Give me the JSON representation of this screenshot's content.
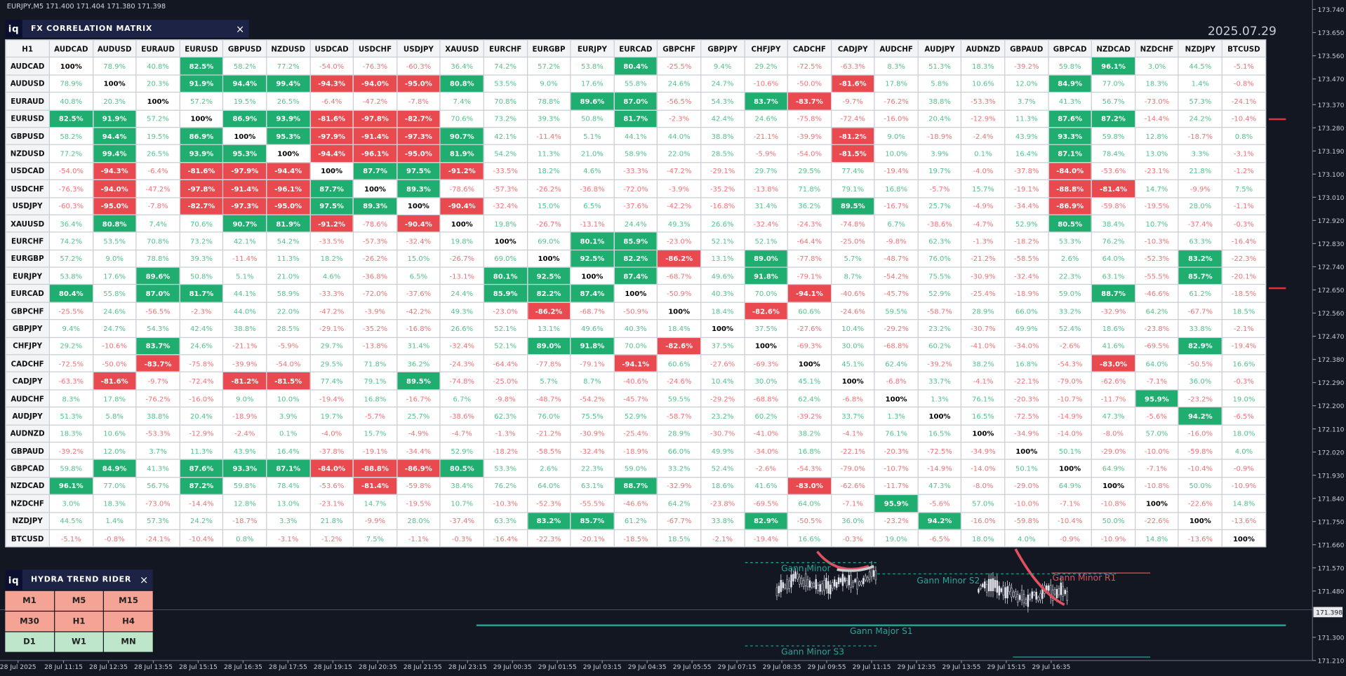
{
  "header": {
    "symbol_info": "EURJPY,M5  171.400 171.404 171.380 171.398",
    "date": "2025.07.29"
  },
  "matrix": {
    "logo": "iq",
    "title": "FX CORRELATION MATRIX",
    "close": "×",
    "corner": "H1",
    "columns": [
      "AUDCAD",
      "AUDUSD",
      "EURAUD",
      "EURUSD",
      "GBPUSD",
      "NZDUSD",
      "USDCAD",
      "USDCHF",
      "USDJPY",
      "XAUUSD",
      "EURCHF",
      "EURGBP",
      "EURJPY",
      "EURCAD",
      "GBPCHF",
      "GBPJPY",
      "CHFJPY",
      "CADCHF",
      "CADJPY",
      "AUDCHF",
      "AUDJPY",
      "AUDNZD",
      "GBPAUD",
      "GBPCAD",
      "NZDCAD",
      "NZDCHF",
      "NZDJPY",
      "BTCUSD"
    ],
    "rows": [
      {
        "label": "AUDCAD",
        "cells": [
          "100%",
          "78.9%",
          "40.8%",
          "82.5%",
          "58.2%",
          "77.2%",
          "-54.0%",
          "-76.3%",
          "-60.3%",
          "36.4%",
          "74.2%",
          "57.2%",
          "53.8%",
          "80.4%",
          "-25.5%",
          "9.4%",
          "29.2%",
          "-72.5%",
          "-63.3%",
          "8.3%",
          "51.3%",
          "18.3%",
          "-39.2%",
          "59.8%",
          "96.1%",
          "3.0%",
          "44.5%",
          "-5.1%"
        ]
      },
      {
        "label": "AUDUSD",
        "cells": [
          "78.9%",
          "100%",
          "20.3%",
          "91.9%",
          "94.4%",
          "99.4%",
          "-94.3%",
          "-94.0%",
          "-95.0%",
          "80.8%",
          "53.5%",
          "9.0%",
          "17.6%",
          "55.8%",
          "24.6%",
          "24.7%",
          "-10.6%",
          "-50.0%",
          "-81.6%",
          "17.8%",
          "5.8%",
          "10.6%",
          "12.0%",
          "84.9%",
          "77.0%",
          "18.3%",
          "1.4%",
          "-0.8%"
        ]
      },
      {
        "label": "EURAUD",
        "cells": [
          "40.8%",
          "20.3%",
          "100%",
          "57.2%",
          "19.5%",
          "26.5%",
          "-6.4%",
          "-47.2%",
          "-7.8%",
          "7.4%",
          "70.8%",
          "78.8%",
          "89.6%",
          "87.0%",
          "-56.5%",
          "54.3%",
          "83.7%",
          "-83.7%",
          "-9.7%",
          "-76.2%",
          "38.8%",
          "-53.3%",
          "3.7%",
          "41.3%",
          "56.7%",
          "-73.0%",
          "57.3%",
          "-24.1%"
        ]
      },
      {
        "label": "EURUSD",
        "cells": [
          "82.5%",
          "91.9%",
          "57.2%",
          "100%",
          "86.9%",
          "93.9%",
          "-81.6%",
          "-97.8%",
          "-82.7%",
          "70.6%",
          "73.2%",
          "39.3%",
          "50.8%",
          "81.7%",
          "-2.3%",
          "42.4%",
          "24.6%",
          "-75.8%",
          "-72.4%",
          "-16.0%",
          "20.4%",
          "-12.9%",
          "11.3%",
          "87.6%",
          "87.2%",
          "-14.4%",
          "24.2%",
          "-10.4%"
        ]
      },
      {
        "label": "GBPUSD",
        "cells": [
          "58.2%",
          "94.4%",
          "19.5%",
          "86.9%",
          "100%",
          "95.3%",
          "-97.9%",
          "-91.4%",
          "-97.3%",
          "90.7%",
          "42.1%",
          "-11.4%",
          "5.1%",
          "44.1%",
          "44.0%",
          "38.8%",
          "-21.1%",
          "-39.9%",
          "-81.2%",
          "9.0%",
          "-18.9%",
          "-2.4%",
          "43.9%",
          "93.3%",
          "59.8%",
          "12.8%",
          "-18.7%",
          "0.8%"
        ]
      },
      {
        "label": "NZDUSD",
        "cells": [
          "77.2%",
          "99.4%",
          "26.5%",
          "93.9%",
          "95.3%",
          "100%",
          "-94.4%",
          "-96.1%",
          "-95.0%",
          "81.9%",
          "54.2%",
          "11.3%",
          "21.0%",
          "58.9%",
          "22.0%",
          "28.5%",
          "-5.9%",
          "-54.0%",
          "-81.5%",
          "10.0%",
          "3.9%",
          "0.1%",
          "16.4%",
          "87.1%",
          "78.4%",
          "13.0%",
          "3.3%",
          "-3.1%"
        ]
      },
      {
        "label": "USDCAD",
        "cells": [
          "-54.0%",
          "-94.3%",
          "-6.4%",
          "-81.6%",
          "-97.9%",
          "-94.4%",
          "100%",
          "87.7%",
          "97.5%",
          "-91.2%",
          "-33.5%",
          "18.2%",
          "4.6%",
          "-33.3%",
          "-47.2%",
          "-29.1%",
          "29.7%",
          "29.5%",
          "77.4%",
          "-19.4%",
          "19.7%",
          "-4.0%",
          "-37.8%",
          "-84.0%",
          "-53.6%",
          "-23.1%",
          "21.8%",
          "-1.2%"
        ]
      },
      {
        "label": "USDCHF",
        "cells": [
          "-76.3%",
          "-94.0%",
          "-47.2%",
          "-97.8%",
          "-91.4%",
          "-96.1%",
          "87.7%",
          "100%",
          "89.3%",
          "-78.6%",
          "-57.3%",
          "-26.2%",
          "-36.8%",
          "-72.0%",
          "-3.9%",
          "-35.2%",
          "-13.8%",
          "71.8%",
          "79.1%",
          "16.8%",
          "-5.7%",
          "15.7%",
          "-19.1%",
          "-88.8%",
          "-81.4%",
          "14.7%",
          "-9.9%",
          "7.5%"
        ]
      },
      {
        "label": "USDJPY",
        "cells": [
          "-60.3%",
          "-95.0%",
          "-7.8%",
          "-82.7%",
          "-97.3%",
          "-95.0%",
          "97.5%",
          "89.3%",
          "100%",
          "-90.4%",
          "-32.4%",
          "15.0%",
          "6.5%",
          "-37.6%",
          "-42.2%",
          "-16.8%",
          "31.4%",
          "36.2%",
          "89.5%",
          "-16.7%",
          "25.7%",
          "-4.9%",
          "-34.4%",
          "-86.9%",
          "-59.8%",
          "-19.5%",
          "28.0%",
          "-1.1%"
        ]
      },
      {
        "label": "XAUUSD",
        "cells": [
          "36.4%",
          "80.8%",
          "7.4%",
          "70.6%",
          "90.7%",
          "81.9%",
          "-91.2%",
          "-78.6%",
          "-90.4%",
          "100%",
          "19.8%",
          "-26.7%",
          "-13.1%",
          "24.4%",
          "49.3%",
          "26.6%",
          "-32.4%",
          "-24.3%",
          "-74.8%",
          "6.7%",
          "-38.6%",
          "-4.7%",
          "52.9%",
          "80.5%",
          "38.4%",
          "10.7%",
          "-37.4%",
          "-0.3%"
        ]
      },
      {
        "label": "EURCHF",
        "cells": [
          "74.2%",
          "53.5%",
          "70.8%",
          "73.2%",
          "42.1%",
          "54.2%",
          "-33.5%",
          "-57.3%",
          "-32.4%",
          "19.8%",
          "100%",
          "69.0%",
          "80.1%",
          "85.9%",
          "-23.0%",
          "52.1%",
          "52.1%",
          "-64.4%",
          "-25.0%",
          "-9.8%",
          "62.3%",
          "-1.3%",
          "-18.2%",
          "53.3%",
          "76.2%",
          "-10.3%",
          "63.3%",
          "-16.4%"
        ]
      },
      {
        "label": "EURGBP",
        "cells": [
          "57.2%",
          "9.0%",
          "78.8%",
          "39.3%",
          "-11.4%",
          "11.3%",
          "18.2%",
          "-26.2%",
          "15.0%",
          "-26.7%",
          "69.0%",
          "100%",
          "92.5%",
          "82.2%",
          "-86.2%",
          "13.1%",
          "89.0%",
          "-77.8%",
          "5.7%",
          "-48.7%",
          "76.0%",
          "-21.2%",
          "-58.5%",
          "2.6%",
          "64.0%",
          "-52.3%",
          "83.2%",
          "-22.3%"
        ]
      },
      {
        "label": "EURJPY",
        "cells": [
          "53.8%",
          "17.6%",
          "89.6%",
          "50.8%",
          "5.1%",
          "21.0%",
          "4.6%",
          "-36.8%",
          "6.5%",
          "-13.1%",
          "80.1%",
          "92.5%",
          "100%",
          "87.4%",
          "-68.7%",
          "49.6%",
          "91.8%",
          "-79.1%",
          "8.7%",
          "-54.2%",
          "75.5%",
          "-30.9%",
          "-32.4%",
          "22.3%",
          "63.1%",
          "-55.5%",
          "85.7%",
          "-20.1%"
        ]
      },
      {
        "label": "EURCAD",
        "cells": [
          "80.4%",
          "55.8%",
          "87.0%",
          "81.7%",
          "44.1%",
          "58.9%",
          "-33.3%",
          "-72.0%",
          "-37.6%",
          "24.4%",
          "85.9%",
          "82.2%",
          "87.4%",
          "100%",
          "-50.9%",
          "40.3%",
          "70.0%",
          "-94.1%",
          "-40.6%",
          "-45.7%",
          "52.9%",
          "-25.4%",
          "-18.9%",
          "59.0%",
          "88.7%",
          "-46.6%",
          "61.2%",
          "-18.5%"
        ]
      },
      {
        "label": "GBPCHF",
        "cells": [
          "-25.5%",
          "24.6%",
          "-56.5%",
          "-2.3%",
          "44.0%",
          "22.0%",
          "-47.2%",
          "-3.9%",
          "-42.2%",
          "49.3%",
          "-23.0%",
          "-86.2%",
          "-68.7%",
          "-50.9%",
          "100%",
          "18.4%",
          "-82.6%",
          "60.6%",
          "-24.6%",
          "59.5%",
          "-58.7%",
          "28.9%",
          "66.0%",
          "33.2%",
          "-32.9%",
          "64.2%",
          "-67.7%",
          "18.5%"
        ]
      },
      {
        "label": "GBPJPY",
        "cells": [
          "9.4%",
          "24.7%",
          "54.3%",
          "42.4%",
          "38.8%",
          "28.5%",
          "-29.1%",
          "-35.2%",
          "-16.8%",
          "26.6%",
          "52.1%",
          "13.1%",
          "49.6%",
          "40.3%",
          "18.4%",
          "100%",
          "37.5%",
          "-27.6%",
          "10.4%",
          "-29.2%",
          "23.2%",
          "-30.7%",
          "49.9%",
          "52.4%",
          "18.6%",
          "-23.8%",
          "33.8%",
          "-2.1%"
        ]
      },
      {
        "label": "CHFJPY",
        "cells": [
          "29.2%",
          "-10.6%",
          "83.7%",
          "24.6%",
          "-21.1%",
          "-5.9%",
          "29.7%",
          "-13.8%",
          "31.4%",
          "-32.4%",
          "52.1%",
          "89.0%",
          "91.8%",
          "70.0%",
          "-82.6%",
          "37.5%",
          "100%",
          "-69.3%",
          "30.0%",
          "-68.8%",
          "60.2%",
          "-41.0%",
          "-34.0%",
          "-2.6%",
          "41.6%",
          "-69.5%",
          "82.9%",
          "-19.4%"
        ]
      },
      {
        "label": "CADCHF",
        "cells": [
          "-72.5%",
          "-50.0%",
          "-83.7%",
          "-75.8%",
          "-39.9%",
          "-54.0%",
          "29.5%",
          "71.8%",
          "36.2%",
          "-24.3%",
          "-64.4%",
          "-77.8%",
          "-79.1%",
          "-94.1%",
          "60.6%",
          "-27.6%",
          "-69.3%",
          "100%",
          "45.1%",
          "62.4%",
          "-39.2%",
          "38.2%",
          "16.8%",
          "-54.3%",
          "-83.0%",
          "64.0%",
          "-50.5%",
          "16.6%"
        ]
      },
      {
        "label": "CADJPY",
        "cells": [
          "-63.3%",
          "-81.6%",
          "-9.7%",
          "-72.4%",
          "-81.2%",
          "-81.5%",
          "77.4%",
          "79.1%",
          "89.5%",
          "-74.8%",
          "-25.0%",
          "5.7%",
          "8.7%",
          "-40.6%",
          "-24.6%",
          "10.4%",
          "30.0%",
          "45.1%",
          "100%",
          "-6.8%",
          "33.7%",
          "-4.1%",
          "-22.1%",
          "-79.0%",
          "-62.6%",
          "-7.1%",
          "36.0%",
          "-0.3%"
        ]
      },
      {
        "label": "AUDCHF",
        "cells": [
          "8.3%",
          "17.8%",
          "-76.2%",
          "-16.0%",
          "9.0%",
          "10.0%",
          "-19.4%",
          "16.8%",
          "-16.7%",
          "6.7%",
          "-9.8%",
          "-48.7%",
          "-54.2%",
          "-45.7%",
          "59.5%",
          "-29.2%",
          "-68.8%",
          "62.4%",
          "-6.8%",
          "100%",
          "1.3%",
          "76.1%",
          "-20.3%",
          "-10.7%",
          "-11.7%",
          "95.9%",
          "-23.2%",
          "19.0%"
        ]
      },
      {
        "label": "AUDJPY",
        "cells": [
          "51.3%",
          "5.8%",
          "38.8%",
          "20.4%",
          "-18.9%",
          "3.9%",
          "19.7%",
          "-5.7%",
          "25.7%",
          "-38.6%",
          "62.3%",
          "76.0%",
          "75.5%",
          "52.9%",
          "-58.7%",
          "23.2%",
          "60.2%",
          "-39.2%",
          "33.7%",
          "1.3%",
          "100%",
          "16.5%",
          "-72.5%",
          "-14.9%",
          "47.3%",
          "-5.6%",
          "94.2%",
          "-6.5%"
        ]
      },
      {
        "label": "AUDNZD",
        "cells": [
          "18.3%",
          "10.6%",
          "-53.3%",
          "-12.9%",
          "-2.4%",
          "0.1%",
          "-4.0%",
          "15.7%",
          "-4.9%",
          "-4.7%",
          "-1.3%",
          "-21.2%",
          "-30.9%",
          "-25.4%",
          "28.9%",
          "-30.7%",
          "-41.0%",
          "38.2%",
          "-4.1%",
          "76.1%",
          "16.5%",
          "100%",
          "-34.9%",
          "-14.0%",
          "-8.0%",
          "57.0%",
          "-16.0%",
          "18.0%"
        ]
      },
      {
        "label": "GBPAUD",
        "cells": [
          "-39.2%",
          "12.0%",
          "3.7%",
          "11.3%",
          "43.9%",
          "16.4%",
          "-37.8%",
          "-19.1%",
          "-34.4%",
          "52.9%",
          "-18.2%",
          "-58.5%",
          "-32.4%",
          "-18.9%",
          "66.0%",
          "49.9%",
          "-34.0%",
          "16.8%",
          "-22.1%",
          "-20.3%",
          "-72.5%",
          "-34.9%",
          "100%",
          "50.1%",
          "-29.0%",
          "-10.0%",
          "-59.8%",
          "4.0%"
        ]
      },
      {
        "label": "GBPCAD",
        "cells": [
          "59.8%",
          "84.9%",
          "41.3%",
          "87.6%",
          "93.3%",
          "87.1%",
          "-84.0%",
          "-88.8%",
          "-86.9%",
          "80.5%",
          "53.3%",
          "2.6%",
          "22.3%",
          "59.0%",
          "33.2%",
          "52.4%",
          "-2.6%",
          "-54.3%",
          "-79.0%",
          "-10.7%",
          "-14.9%",
          "-14.0%",
          "50.1%",
          "100%",
          "64.9%",
          "-7.1%",
          "-10.4%",
          "-0.9%"
        ]
      },
      {
        "label": "NZDCAD",
        "cells": [
          "96.1%",
          "77.0%",
          "56.7%",
          "87.2%",
          "59.8%",
          "78.4%",
          "-53.6%",
          "-81.4%",
          "-59.8%",
          "38.4%",
          "76.2%",
          "64.0%",
          "63.1%",
          "88.7%",
          "-32.9%",
          "18.6%",
          "41.6%",
          "-83.0%",
          "-62.6%",
          "-11.7%",
          "47.3%",
          "-8.0%",
          "-29.0%",
          "64.9%",
          "100%",
          "-10.8%",
          "50.0%",
          "-10.9%"
        ]
      },
      {
        "label": "NZDCHF",
        "cells": [
          "3.0%",
          "18.3%",
          "-73.0%",
          "-14.4%",
          "12.8%",
          "13.0%",
          "-23.1%",
          "14.7%",
          "-19.5%",
          "10.7%",
          "-10.3%",
          "-52.3%",
          "-55.5%",
          "-46.6%",
          "64.2%",
          "-23.8%",
          "-69.5%",
          "64.0%",
          "-7.1%",
          "95.9%",
          "-5.6%",
          "57.0%",
          "-10.0%",
          "-7.1%",
          "-10.8%",
          "100%",
          "-22.6%",
          "14.8%"
        ]
      },
      {
        "label": "NZDJPY",
        "cells": [
          "44.5%",
          "1.4%",
          "57.3%",
          "24.2%",
          "-18.7%",
          "3.3%",
          "21.8%",
          "-9.9%",
          "28.0%",
          "-37.4%",
          "63.3%",
          "83.2%",
          "85.7%",
          "61.2%",
          "-67.7%",
          "33.8%",
          "82.9%",
          "-50.5%",
          "36.0%",
          "-23.2%",
          "94.2%",
          "-16.0%",
          "-59.8%",
          "-10.4%",
          "50.0%",
          "-22.6%",
          "100%",
          "-13.6%"
        ]
      },
      {
        "label": "BTCUSD",
        "cells": [
          "-5.1%",
          "-0.8%",
          "-24.1%",
          "-10.4%",
          "0.8%",
          "-3.1%",
          "-1.2%",
          "7.5%",
          "-1.1%",
          "-0.3%",
          "-16.4%",
          "-22.3%",
          "-20.1%",
          "-18.5%",
          "18.5%",
          "-2.1%",
          "-19.4%",
          "16.6%",
          "-0.3%",
          "19.0%",
          "-6.5%",
          "18.0%",
          "4.0%",
          "-0.9%",
          "-10.9%",
          "14.8%",
          "-13.6%",
          "100%"
        ]
      }
    ]
  },
  "trend_rider": {
    "logo": "iq",
    "title": "HYDRA TREND RIDER",
    "close": "×",
    "buttons": [
      "M1",
      "M5",
      "M15",
      "M30",
      "H1",
      "H4",
      "D1",
      "W1",
      "MN"
    ]
  },
  "chart": {
    "annotations": [
      "Gann Minor",
      "Gann Minor S2",
      "Gann Major S1",
      "Gann Minor S3",
      "Gann Minor R1"
    ],
    "price_labels": [
      "173.740",
      "173.650",
      "173.560",
      "173.470",
      "173.370",
      "173.280",
      "173.190",
      "173.100",
      "173.010",
      "172.920",
      "172.830",
      "172.740",
      "172.650",
      "172.560",
      "172.470",
      "172.380",
      "172.290",
      "172.200",
      "172.110",
      "172.020",
      "171.930",
      "171.840",
      "171.750",
      "171.660",
      "171.570",
      "171.480",
      "171.300",
      "171.210"
    ],
    "current_price": "171.398",
    "time_labels": [
      "28 Jul 2025",
      "28 Jul 11:15",
      "28 Jul 12:35",
      "28 Jul 13:55",
      "28 Jul 15:15",
      "28 Jul 16:35",
      "28 Jul 17:55",
      "28 Jul 19:15",
      "28 Jul 20:35",
      "28 Jul 21:55",
      "28 Jul 23:15",
      "29 Jul 00:35",
      "29 Jul 01:55",
      "29 Jul 03:15",
      "29 Jul 04:35",
      "29 Jul 05:55",
      "29 Jul 07:15",
      "29 Jul 08:35",
      "29 Jul 09:55",
      "29 Jul 11:15",
      "29 Jul 12:35",
      "29 Jul 13:55",
      "29 Jul 15:15",
      "29 Jul 16:35"
    ]
  }
}
